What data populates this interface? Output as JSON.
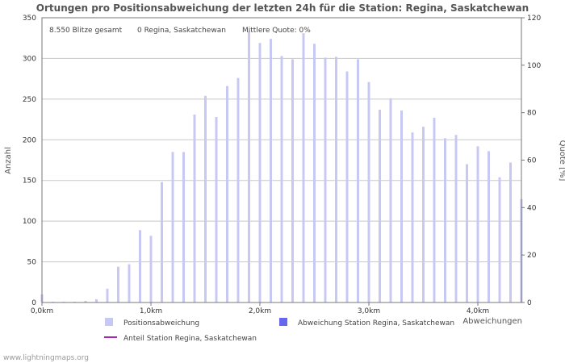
{
  "chart_data": {
    "type": "bar",
    "title": "Ortungen pro Positionsabweichung der letzten 24h für die Station: Regina, Saskatchewan",
    "stats": {
      "total": "8.550 Blitze gesamt",
      "station": "0 Regina, Saskatchewan",
      "quote": "Mittlere Quote: 0%"
    },
    "y_left": {
      "label": "Anzahl",
      "min": 0,
      "max": 350,
      "ticks": [
        0,
        50,
        100,
        150,
        200,
        250,
        300,
        350
      ]
    },
    "y_right": {
      "label": "Quote [%]",
      "min": 0,
      "max": 120,
      "ticks": [
        0,
        20,
        40,
        60,
        80,
        100,
        120
      ]
    },
    "x": {
      "label": "Abweichungen",
      "min": 0,
      "max": 4.4,
      "tick_values": [
        0,
        1,
        2,
        3,
        4
      ],
      "tick_labels": [
        "0,0km",
        "1,0km",
        "2,0km",
        "3,0km",
        "4,0km"
      ]
    },
    "bin_width_km": 0.1,
    "series": [
      {
        "name": "Positionsabweichung",
        "color": "#c8c8f4",
        "values": [
          10,
          1,
          1,
          1,
          2,
          4,
          17,
          44,
          47,
          89,
          82,
          148,
          185,
          185,
          231,
          254,
          228,
          266,
          276,
          333,
          319,
          324,
          303,
          299,
          331,
          318,
          301,
          302,
          284,
          299,
          271,
          237,
          251,
          236,
          209,
          216,
          227,
          202,
          206,
          170,
          192,
          186,
          154,
          172,
          127
        ]
      },
      {
        "name": "Abweichung Station Regina, Saskatchewan",
        "color": "#6666ee",
        "values": [
          0,
          0,
          0,
          0,
          0,
          0,
          0,
          0,
          0,
          0,
          0,
          0,
          0,
          0,
          0,
          0,
          0,
          0,
          0,
          0,
          0,
          0,
          0,
          0,
          0,
          0,
          0,
          0,
          0,
          0,
          0,
          0,
          0,
          0,
          0,
          0,
          0,
          0,
          0,
          0,
          0,
          0,
          0,
          0,
          0
        ]
      },
      {
        "name": "Anteil Station Regina, Saskatchewan",
        "color": "#aa22bb",
        "kind": "line",
        "values": [
          0,
          0,
          0,
          0,
          0,
          0,
          0,
          0,
          0,
          0,
          0,
          0,
          0,
          0,
          0,
          0,
          0,
          0,
          0,
          0,
          0,
          0,
          0,
          0,
          0,
          0,
          0,
          0,
          0,
          0,
          0,
          0,
          0,
          0,
          0,
          0,
          0,
          0,
          0,
          0,
          0,
          0,
          0,
          0,
          0
        ]
      }
    ]
  },
  "footer": {
    "source": "www.lightningmaps.org"
  }
}
